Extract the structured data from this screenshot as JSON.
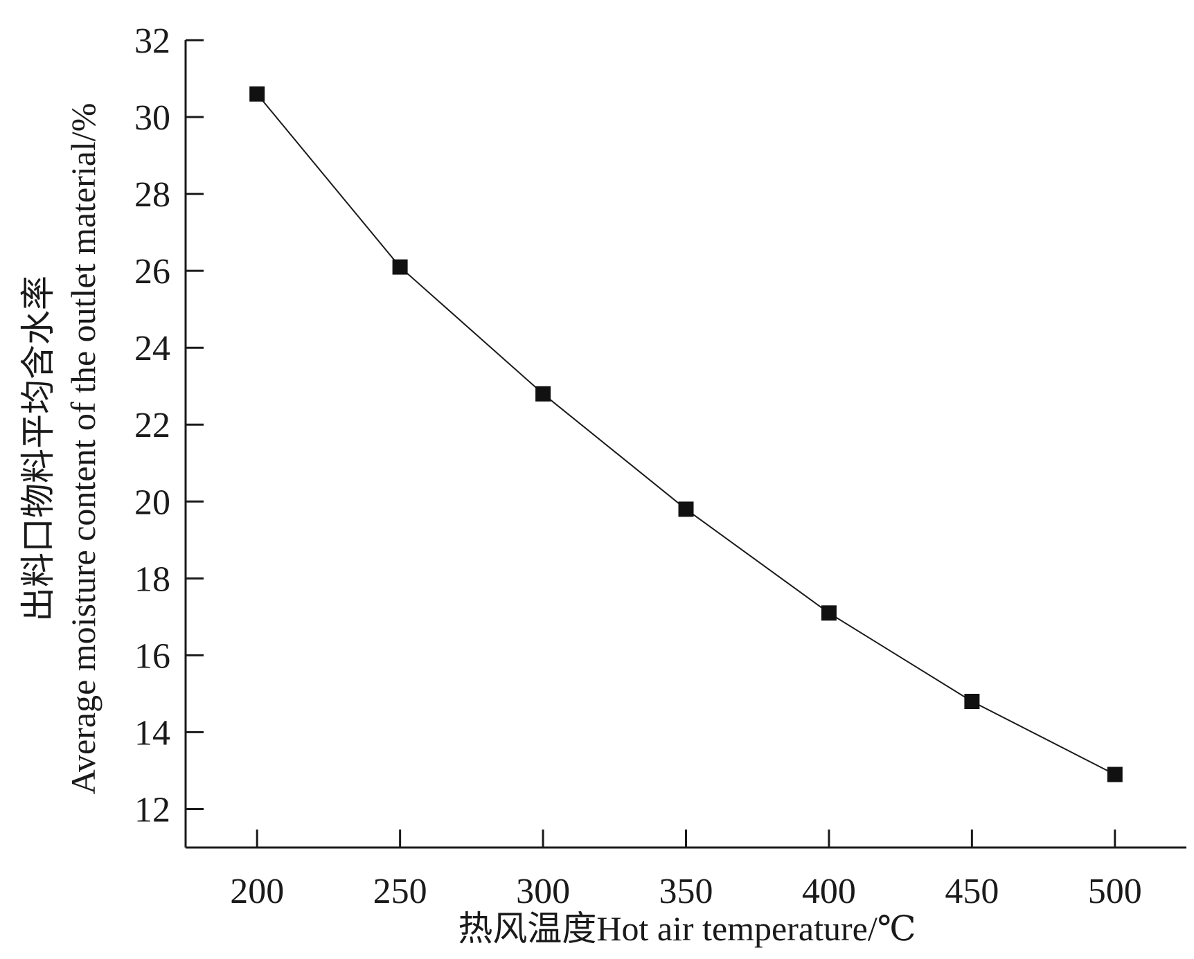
{
  "chart_data": {
    "type": "line",
    "title": "",
    "xlabel": "热风温度Hot air temperature/℃",
    "ylabel_line1": "出料口物料平均含水率",
    "ylabel_line2": "Average moisture content of the outlet material/%",
    "x": [
      200,
      250,
      300,
      350,
      400,
      450,
      500
    ],
    "series": [
      {
        "values": [
          30.6,
          26.1,
          22.8,
          19.8,
          17.1,
          14.8,
          12.9
        ]
      }
    ],
    "xlim": [
      175,
      525
    ],
    "ylim": [
      11,
      32
    ],
    "xticks": [
      200,
      250,
      300,
      350,
      400,
      450,
      500
    ],
    "yticks": [
      12,
      14,
      16,
      18,
      20,
      22,
      24,
      26,
      28,
      30,
      32
    ],
    "marker": "square",
    "grid": false,
    "legend": "none",
    "colors": {
      "line": "#1a1a1a",
      "marker": "#111111",
      "axis": "#1a1a1a"
    }
  }
}
